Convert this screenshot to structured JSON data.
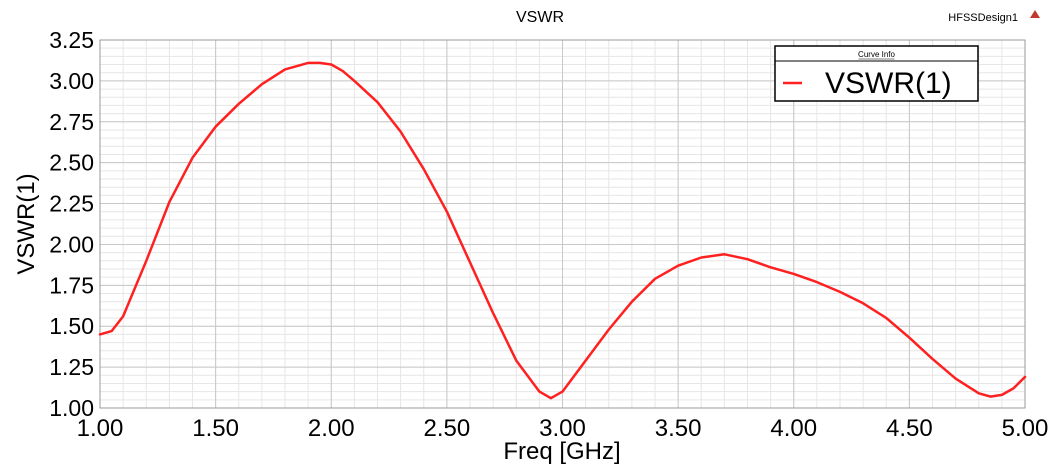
{
  "window": {
    "design_name": "HFSSDesign1",
    "collapse_icon": "triangle-up-icon"
  },
  "chart_data": {
    "type": "line",
    "title": "VSWR",
    "xlabel": "Freq [GHz]",
    "ylabel": "VSWR(1)",
    "xlim": [
      1.0,
      5.0
    ],
    "ylim": [
      1.0,
      3.25
    ],
    "x_ticks": [
      1.0,
      1.5,
      2.0,
      2.5,
      3.0,
      3.5,
      4.0,
      4.5,
      5.0
    ],
    "x_tick_labels": [
      "1.00",
      "1.50",
      "2.00",
      "2.50",
      "3.00",
      "3.50",
      "4.00",
      "4.50",
      "5.00"
    ],
    "y_ticks": [
      1.0,
      1.25,
      1.5,
      1.75,
      2.0,
      2.25,
      2.5,
      2.75,
      3.0,
      3.25
    ],
    "y_tick_labels": [
      "1.00",
      "1.25",
      "1.50",
      "1.75",
      "2.00",
      "2.25",
      "2.50",
      "2.75",
      "3.00",
      "3.25"
    ],
    "grid": true,
    "minor_grid": true,
    "legend": {
      "title": "Curve Info",
      "placement": "top-right",
      "entries": [
        "VSWR(1)"
      ]
    },
    "colors": {
      "series": "#ff2020",
      "grid_major": "#c8c8c8",
      "grid_minor": "#e6e6e6",
      "accent_icon": "#c0392b"
    },
    "series": [
      {
        "name": "VSWR(1)",
        "x": [
          1.0,
          1.05,
          1.1,
          1.2,
          1.3,
          1.4,
          1.5,
          1.6,
          1.7,
          1.8,
          1.9,
          1.95,
          2.0,
          2.05,
          2.1,
          2.2,
          2.3,
          2.4,
          2.5,
          2.6,
          2.7,
          2.8,
          2.9,
          2.95,
          3.0,
          3.1,
          3.2,
          3.3,
          3.4,
          3.5,
          3.6,
          3.7,
          3.8,
          3.9,
          4.0,
          4.1,
          4.2,
          4.3,
          4.4,
          4.5,
          4.6,
          4.7,
          4.8,
          4.85,
          4.9,
          4.95,
          5.0
        ],
        "y": [
          1.45,
          1.47,
          1.56,
          1.9,
          2.26,
          2.53,
          2.72,
          2.86,
          2.98,
          3.07,
          3.11,
          3.11,
          3.1,
          3.06,
          3.0,
          2.87,
          2.69,
          2.46,
          2.2,
          1.89,
          1.58,
          1.29,
          1.1,
          1.06,
          1.1,
          1.29,
          1.48,
          1.65,
          1.79,
          1.87,
          1.92,
          1.94,
          1.91,
          1.86,
          1.82,
          1.77,
          1.71,
          1.64,
          1.55,
          1.43,
          1.3,
          1.18,
          1.09,
          1.07,
          1.08,
          1.12,
          1.19
        ]
      }
    ]
  }
}
